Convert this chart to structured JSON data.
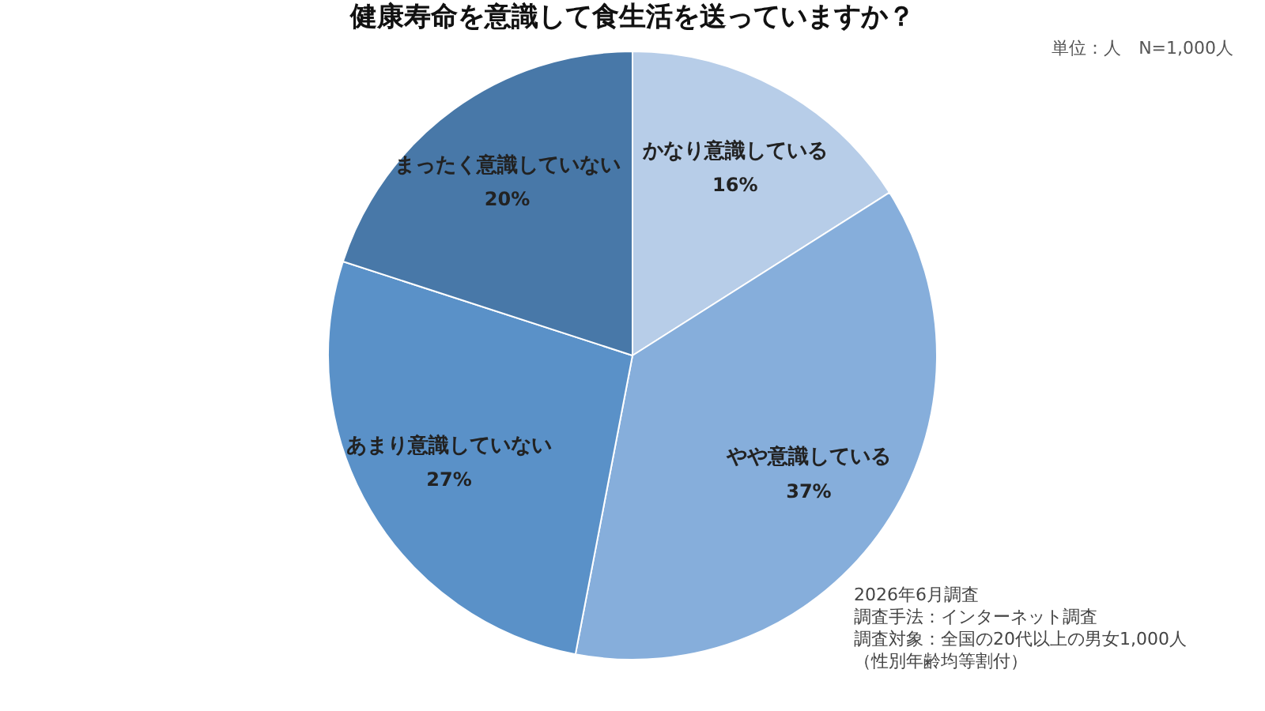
{
  "chart_data": {
    "type": "pie",
    "title": "健康寿命を意識して食生活を送っていますか？",
    "categories": [
      "かなり意識している",
      "やや意識している",
      "あまり意識していない",
      "まったく意識していない"
    ],
    "values": [
      16,
      37,
      27,
      20
    ],
    "colors": [
      "#b7cde8",
      "#86aedb",
      "#5a91c8",
      "#4878a8"
    ],
    "value_labels": [
      "16%",
      "37%",
      "27%",
      "20%"
    ],
    "annotations": [
      "単位：人　N=1,000人",
      "2026年6月調査",
      "調査手法：インターネット調査",
      "調査対象：全国の20代以上の男女1,000人",
      "（性別年齢均等割付）"
    ]
  }
}
